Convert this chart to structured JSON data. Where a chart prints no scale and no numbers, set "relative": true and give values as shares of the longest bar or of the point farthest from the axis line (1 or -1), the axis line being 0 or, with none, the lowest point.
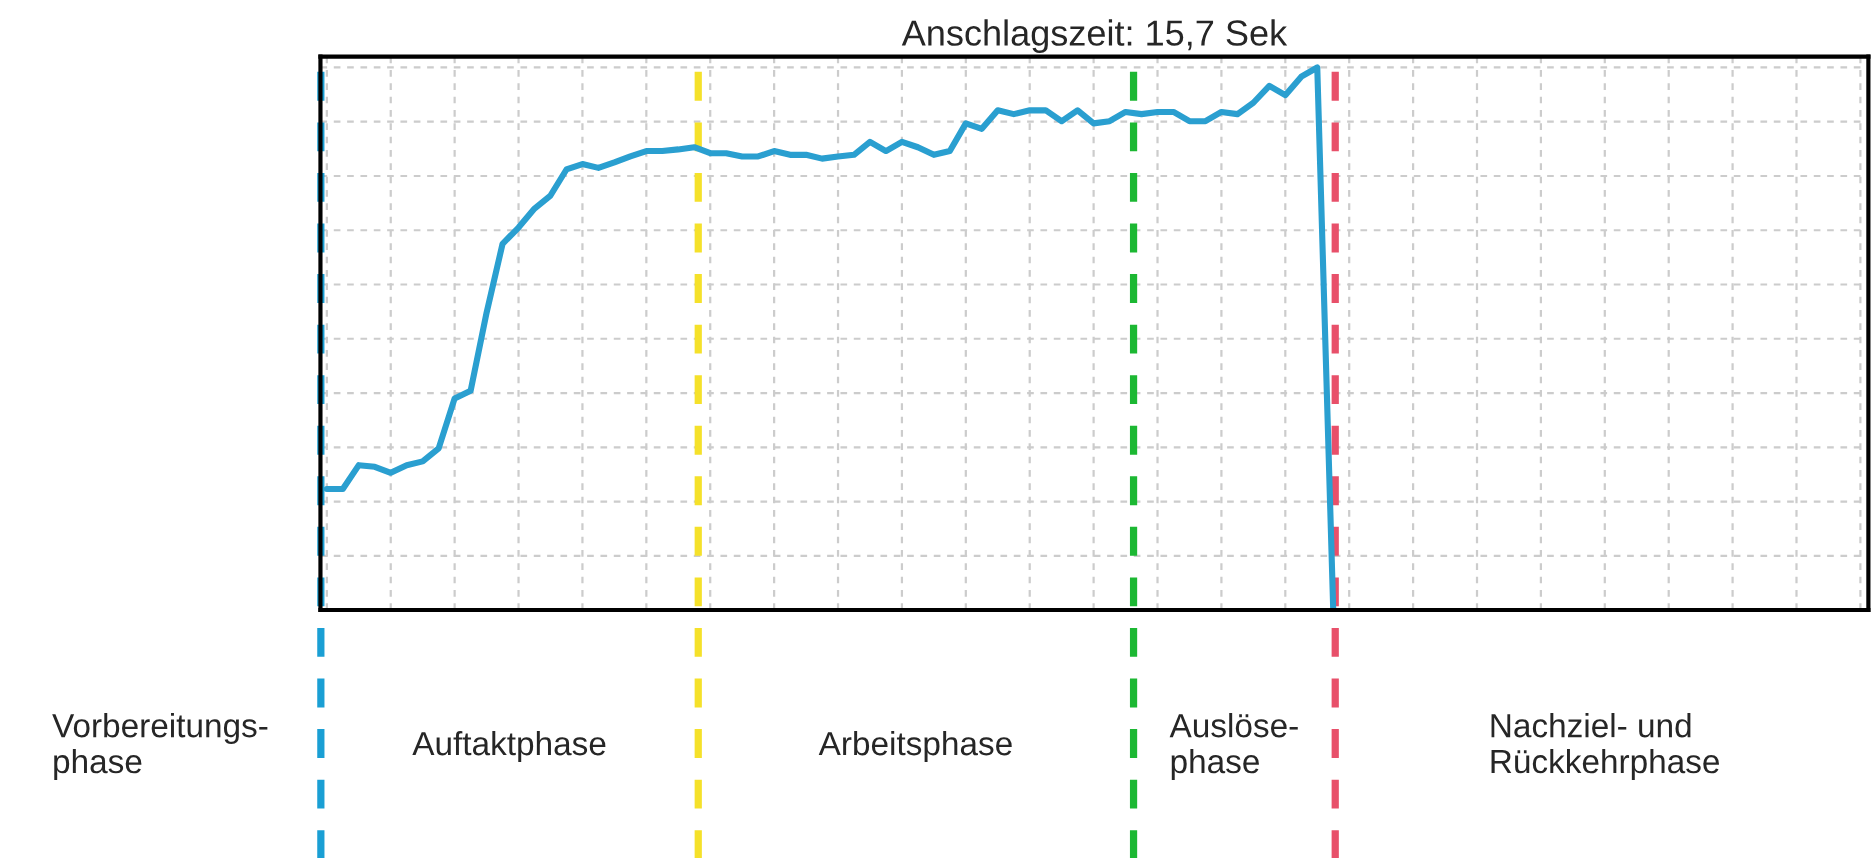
{
  "chart_data": {
    "type": "line",
    "title": "Anschlagszeit: 15,7 Sek",
    "relative": true,
    "grid": true,
    "legend": false,
    "marker": "none",
    "line_style": "solid",
    "categories": [
      null,
      null,
      null,
      null,
      null,
      null,
      null,
      null,
      null,
      null,
      null,
      null,
      null,
      null,
      null,
      null,
      null,
      null,
      null,
      null,
      null,
      null,
      null,
      null,
      null,
      null,
      null,
      null,
      null,
      null,
      null,
      null,
      null,
      null,
      null,
      null,
      null,
      null,
      null,
      null,
      null,
      null,
      null,
      null,
      null,
      null,
      null,
      null,
      null,
      null,
      null,
      null,
      null,
      null,
      null,
      null,
      null,
      null,
      null,
      null,
      null,
      null,
      null,
      null,
      null,
      null,
      null,
      null,
      null,
      null,
      null,
      null,
      null,
      null,
      null,
      null,
      null,
      null,
      null,
      null,
      null,
      null,
      null,
      null,
      null,
      null,
      null,
      null,
      null,
      null,
      null,
      null,
      null,
      null,
      null,
      null,
      null
    ],
    "series": [
      {
        "color": "#2a9fd0",
        "values": [
          0.223,
          0.223,
          0.267,
          0.264,
          0.253,
          0.267,
          0.274,
          0.298,
          0.39,
          0.404,
          0.548,
          0.675,
          0.705,
          0.74,
          0.764,
          0.812,
          0.822,
          0.815,
          0.825,
          0.836,
          0.846,
          0.846,
          0.849,
          0.853,
          0.842,
          0.842,
          0.836,
          0.836,
          0.846,
          0.839,
          0.839,
          0.832,
          0.836,
          0.839,
          0.863,
          0.846,
          0.863,
          0.853,
          0.839,
          0.846,
          0.897,
          0.887,
          0.921,
          0.914,
          0.921,
          0.921,
          0.901,
          0.921,
          0.897,
          0.901,
          0.918,
          0.914,
          0.918,
          0.918,
          0.901,
          0.901,
          0.918,
          0.914,
          0.935,
          0.966,
          0.949,
          0.983,
          1,
          0,
          null,
          null,
          null,
          null,
          null,
          null,
          null,
          null,
          null,
          null,
          null,
          null,
          null,
          null,
          null,
          null,
          null,
          null,
          null,
          null,
          null,
          null,
          null,
          null,
          null,
          null,
          null,
          null,
          null,
          null,
          null,
          null,
          null
        ]
      }
    ],
    "annotations": [
      "Vorbereitungs-\nphase",
      "Auftaktphase",
      "Arbeitsphase",
      "Auslöse-\nphase",
      "Nachziel- und\nRückkehrphase"
    ]
  }
}
